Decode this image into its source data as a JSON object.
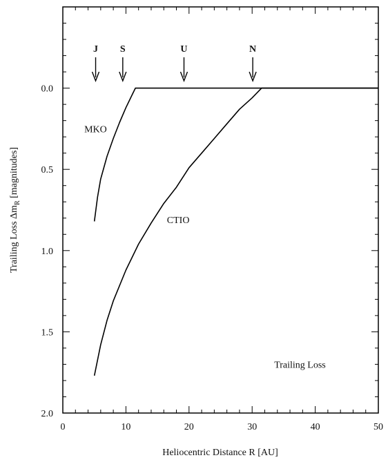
{
  "chart_data": {
    "type": "line",
    "title": "",
    "xlabel": "Heliocentric Distance R [AU]",
    "ylabel_main": "Trailing Loss Δm",
    "ylabel_sub": "R",
    "ylabel_unit": " [magnitudes]",
    "xlim": [
      0,
      50
    ],
    "ylim": [
      2.0,
      -0.5
    ],
    "y_inverted": true,
    "x_ticks": [
      0,
      10,
      20,
      30,
      40,
      50
    ],
    "x_tick_labels": [
      "0",
      "10",
      "20",
      "30",
      "40",
      "50"
    ],
    "y_ticks": [
      0.0,
      0.5,
      1.0,
      1.5,
      2.0
    ],
    "y_tick_labels": [
      "0.0",
      "0.5",
      "1.0",
      "1.5",
      "2.0"
    ],
    "grid": false,
    "series": [
      {
        "name": "MKO",
        "x": [
          5.0,
          5.5,
          6.0,
          7.0,
          8.0,
          9.0,
          10.0,
          11.0,
          11.5,
          12.0,
          20.0,
          30.0,
          40.0,
          50.0
        ],
        "y": [
          0.82,
          0.67,
          0.56,
          0.42,
          0.31,
          0.21,
          0.12,
          0.04,
          0.0,
          0.0,
          0.0,
          0.0,
          0.0,
          0.0
        ]
      },
      {
        "name": "CTIO",
        "x": [
          5.0,
          6.0,
          7.0,
          8.0,
          10.0,
          12.0,
          14.0,
          16.0,
          18.0,
          20.0,
          22.0,
          24.0,
          26.0,
          28.0,
          30.0,
          31.5,
          35.0,
          40.0,
          45.0,
          50.0
        ],
        "y": [
          1.77,
          1.58,
          1.43,
          1.31,
          1.12,
          0.96,
          0.83,
          0.71,
          0.61,
          0.49,
          0.4,
          0.31,
          0.22,
          0.13,
          0.06,
          0.0,
          0.0,
          0.0,
          0.0,
          0.0
        ]
      }
    ],
    "planet_markers": [
      {
        "label": "J",
        "x": 5.2
      },
      {
        "label": "S",
        "x": 9.5
      },
      {
        "label": "U",
        "x": 19.2
      },
      {
        "label": "N",
        "x": 30.1
      }
    ],
    "annotations": [
      {
        "text": "MKO",
        "x": 3.4,
        "y": 0.25
      },
      {
        "text": "CTIO",
        "x": 16.5,
        "y": 0.81
      },
      {
        "text": "Trailing Loss",
        "x": 33.5,
        "y": 1.7
      }
    ]
  }
}
